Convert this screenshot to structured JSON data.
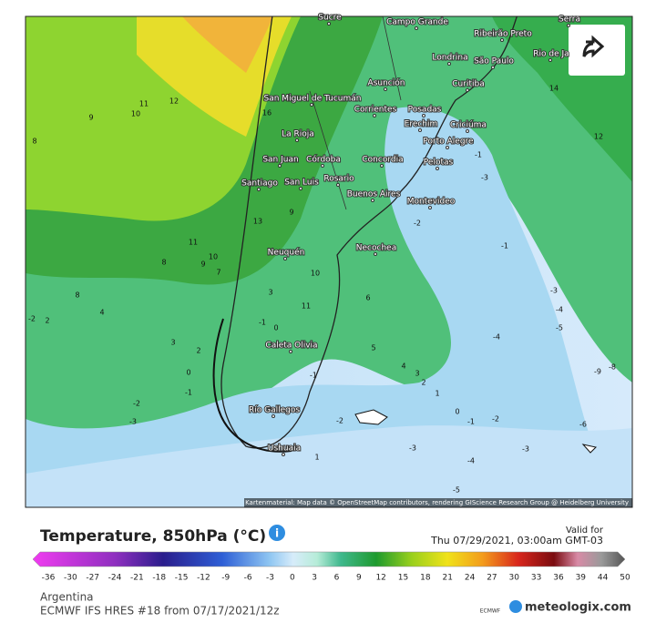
{
  "map": {
    "cities": [
      "Sucre",
      "Campo Grande",
      "Ribeirão Preto",
      "Londrina",
      "São Paulo",
      "Rio de Ja",
      "Serra",
      "Asunción",
      "Curitiba",
      "San Miguel de Tucumán",
      "Corrientes",
      "Posadas",
      "Erechim",
      "Criciúma",
      "La Rioja",
      "Porto Alegre",
      "San Juan",
      "Córdoba",
      "Concordia",
      "Pelotas",
      "Santiago",
      "San Luis",
      "Rosario",
      "Buenos Aires",
      "Montevideo",
      "Neuquén",
      "Necochea",
      "Caleta Olivia",
      "Río Gallegos",
      "Ushuaia"
    ],
    "contour_labels": [
      11,
      12,
      10,
      9,
      8,
      16,
      14,
      12,
      13,
      9,
      11,
      10,
      9,
      8,
      7,
      8,
      4,
      2,
      3,
      2,
      0,
      -1,
      -2,
      -3,
      3,
      0,
      -1,
      11,
      10,
      6,
      5,
      4,
      3,
      2,
      1,
      0,
      -1,
      -2,
      -3,
      -1,
      -2,
      -1,
      -3,
      -4,
      -5,
      -4,
      -6,
      -9,
      -8,
      -3,
      -5,
      -4,
      -2,
      -3,
      -2,
      -1,
      1
    ],
    "attribution": "Kartenmaterial: Map data © OpenStreetMap contributors, rendering GIScience Research Group @ Heidelberg University"
  },
  "legend": {
    "title": "Temperature, 850hPa (°C)",
    "valid_label": "Valid for",
    "valid_time": "Thu 07/29/2021, 03:00am GMT-03",
    "scale": [
      -36,
      -30,
      -27,
      -24,
      -21,
      -18,
      -15,
      -12,
      -9,
      -6,
      -3,
      0,
      3,
      6,
      9,
      12,
      15,
      18,
      21,
      24,
      27,
      30,
      33,
      36,
      39,
      44,
      50
    ]
  },
  "footer": {
    "region": "Argentina",
    "model": "ECMWF IFS HRES #18 from 07/17/2021/12z",
    "ecmwf": "ECMWF",
    "brand": "meteologix.com"
  }
}
